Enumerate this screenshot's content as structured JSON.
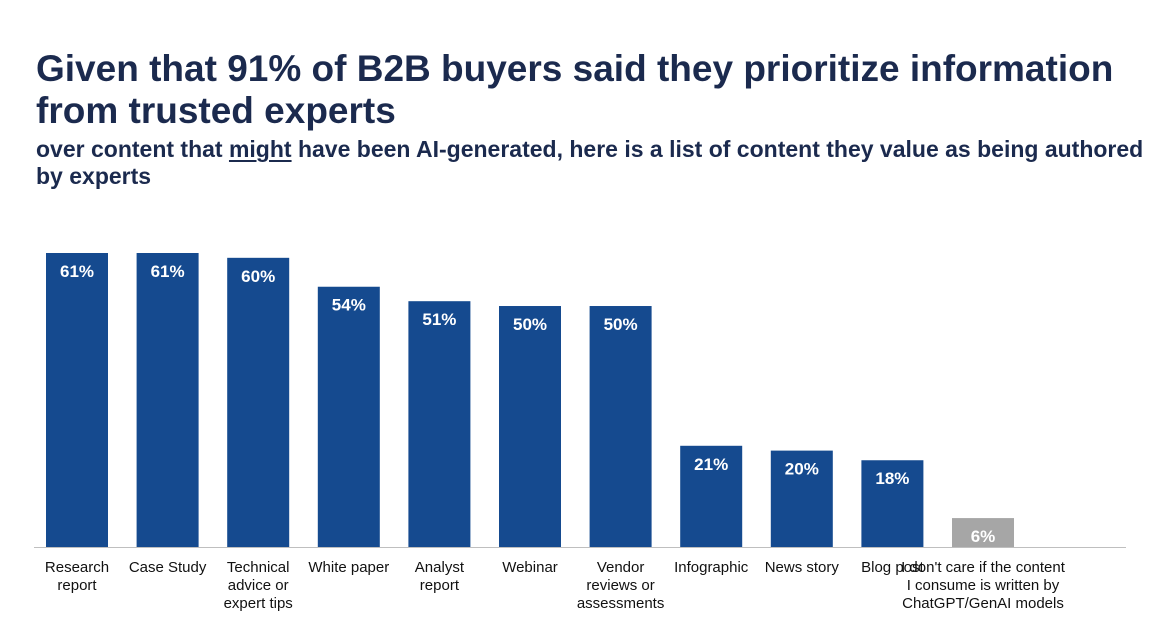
{
  "header": {
    "title": "Given that 91% of B2B buyers said they prioritize information from trusted experts",
    "subtitle_before": "over content that ",
    "subtitle_emph": "might",
    "subtitle_after": " have been AI-generated, here is a list of content they value as being authored by experts"
  },
  "colors": {
    "primary_bar": "#154a8f",
    "highlight_bar": "#a6a6a6",
    "title": "#1b2a4e",
    "axis": "#bfbfbf"
  },
  "chart_data": {
    "type": "bar",
    "categories": [
      "Research report",
      "Case Study",
      "Technical advice or expert tips",
      "White paper",
      "Analyst report",
      "Webinar",
      "Vendor reviews or assessments",
      "Infographic",
      "News story",
      "Blog post",
      "I don't care if the content I consume is written by ChatGPT/GenAI models"
    ],
    "category_lines": [
      [
        "Research",
        "report"
      ],
      [
        "Case Study"
      ],
      [
        "Technical",
        "advice or",
        "expert tips"
      ],
      [
        "White paper"
      ],
      [
        "Analyst",
        "report"
      ],
      [
        "Webinar"
      ],
      [
        "Vendor",
        "reviews or",
        "assessments"
      ],
      [
        "Infographic"
      ],
      [
        "News story"
      ],
      [
        "Blog post"
      ],
      [
        "I don't care if the content",
        "I consume is written by",
        "ChatGPT/GenAI models"
      ]
    ],
    "values": [
      61,
      61,
      60,
      54,
      51,
      50,
      50,
      21,
      20,
      18,
      6
    ],
    "value_labels": [
      "61%",
      "61%",
      "60%",
      "54%",
      "51%",
      "50%",
      "50%",
      "21%",
      "20%",
      "18%",
      "6%"
    ],
    "ylim": [
      0,
      61
    ],
    "grid": false,
    "legend": "none",
    "bar_colors": [
      "#154a8f",
      "#154a8f",
      "#154a8f",
      "#154a8f",
      "#154a8f",
      "#154a8f",
      "#154a8f",
      "#154a8f",
      "#154a8f",
      "#154a8f",
      "#a6a6a6"
    ]
  }
}
